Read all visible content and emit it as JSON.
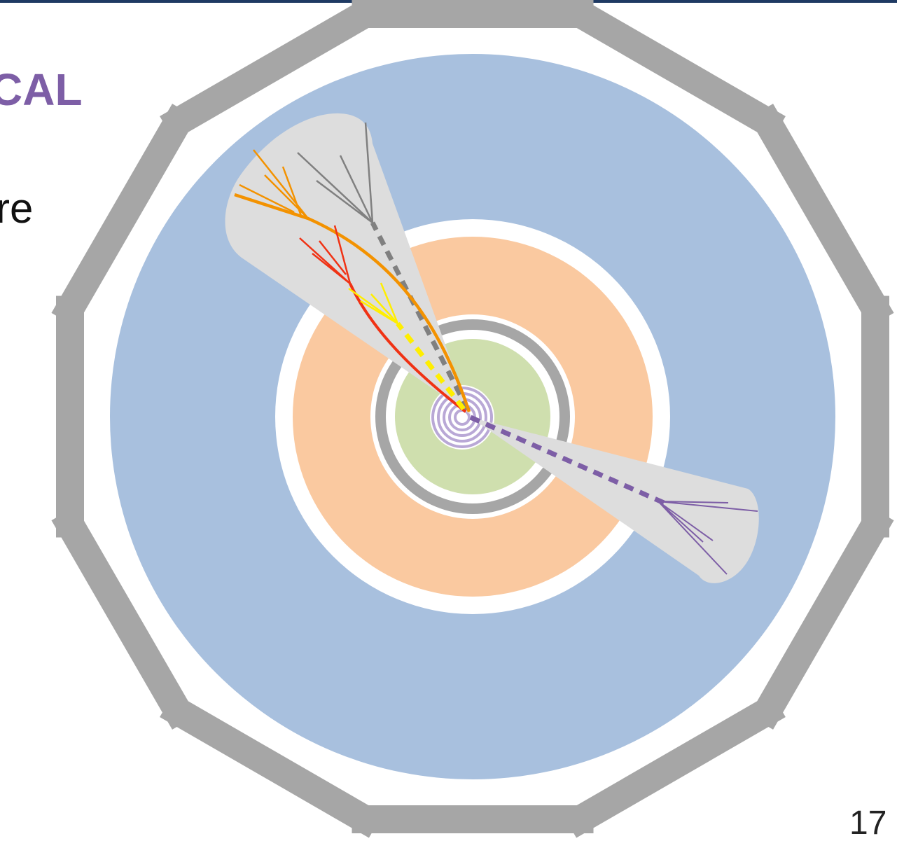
{
  "slide": {
    "heading_fragment": "CAL",
    "text_fragment": "re",
    "page_number": "17"
  },
  "colors": {
    "header_rule": "#1f3a63",
    "muon_chambers": "#a6a6a6",
    "hcal": "#a8c0de",
    "ecal": "#fac9a0",
    "solenoid": "#a6a6a6",
    "tracker": "#cfdfae",
    "pixel_layers": "#b9a8d6",
    "jet_cone": "#dddddd",
    "track_orange": "#f39200",
    "track_red": "#f03214",
    "track_yellow": "#ffee00",
    "track_gray": "#808080",
    "track_purple": "#7d5ea6",
    "heading_text": "#7d5ea6"
  },
  "components": [
    "muon-chamber-ring",
    "hadronic-calorimeter",
    "electromagnetic-calorimeter",
    "solenoid-ring",
    "tracker",
    "pixel-layers",
    "upper-left-jet",
    "lower-right-jet"
  ]
}
